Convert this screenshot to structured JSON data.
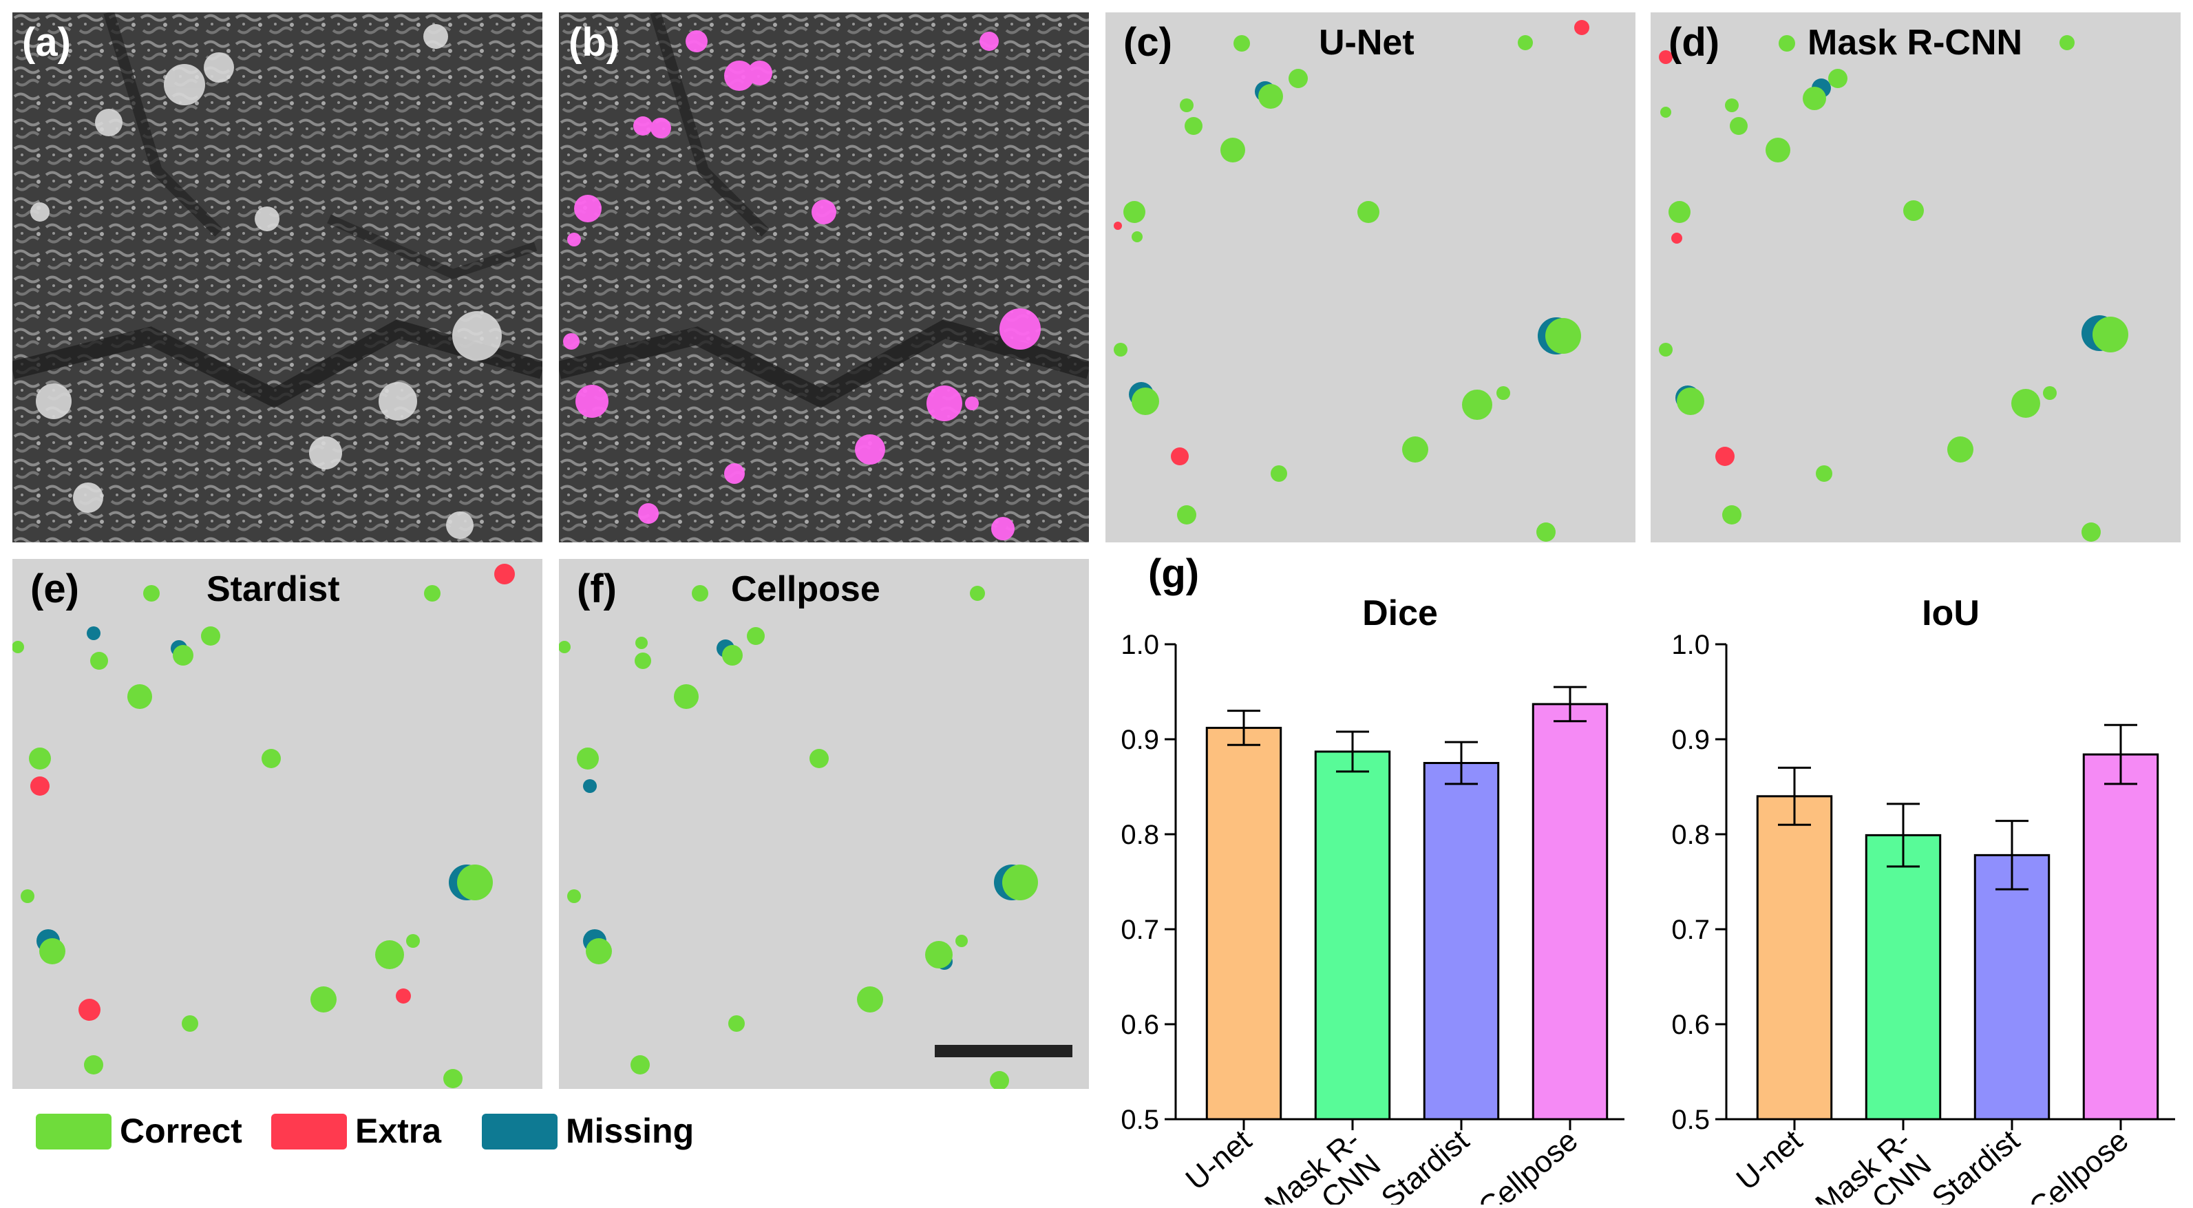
{
  "panels": [
    {
      "label": "(a)",
      "title": ""
    },
    {
      "label": "(b)",
      "title": ""
    },
    {
      "label": "(c)",
      "title": "U-Net"
    },
    {
      "label": "(d)",
      "title": "Mask R-CNN"
    },
    {
      "label": "(e)",
      "title": "Stardist"
    },
    {
      "label": "(f)",
      "title": "Cellpose"
    }
  ],
  "legend": [
    {
      "label": "Correct",
      "color": "#6fdc3b"
    },
    {
      "label": "Extra",
      "color": "#ff3a4f"
    },
    {
      "label": "Missing",
      "color": "#0e7a93"
    }
  ],
  "chart_panel_label": "(g)",
  "chart_data": [
    {
      "type": "bar",
      "title": "Dice",
      "categories": [
        "U-net",
        "Mask R-CNN",
        "Stardist",
        "Cellpose"
      ],
      "category_lines": [
        [
          "U-net"
        ],
        [
          "Mask R-",
          "CNN"
        ],
        [
          "Stardist"
        ],
        [
          "Cellpose"
        ]
      ],
      "values": [
        0.912,
        0.887,
        0.875,
        0.937
      ],
      "errors": [
        0.018,
        0.021,
        0.022,
        0.018
      ],
      "colors": [
        "#fdc07e",
        "#58fb98",
        "#8f8ffd",
        "#f58af5"
      ],
      "ylim": [
        0.5,
        1.0
      ],
      "yticks": [
        "0.5",
        "0.6",
        "0.7",
        "0.8",
        "0.9",
        "1.0"
      ],
      "xlabel": "",
      "ylabel": ""
    },
    {
      "type": "bar",
      "title": "IoU",
      "categories": [
        "U-net",
        "Mask R-CNN",
        "Stardist",
        "Cellpose"
      ],
      "category_lines": [
        [
          "U-net"
        ],
        [
          "Mask R-",
          "CNN"
        ],
        [
          "Stardist"
        ],
        [
          "Cellpose"
        ]
      ],
      "values": [
        0.84,
        0.799,
        0.778,
        0.884
      ],
      "errors": [
        0.03,
        0.033,
        0.036,
        0.031
      ],
      "colors": [
        "#fdc07e",
        "#58fb98",
        "#8f8ffd",
        "#f58af5"
      ],
      "ylim": [
        0.5,
        1.0
      ],
      "yticks": [
        "0.5",
        "0.6",
        "0.7",
        "0.8",
        "0.9",
        "1.0"
      ],
      "xlabel": "",
      "ylabel": ""
    }
  ]
}
